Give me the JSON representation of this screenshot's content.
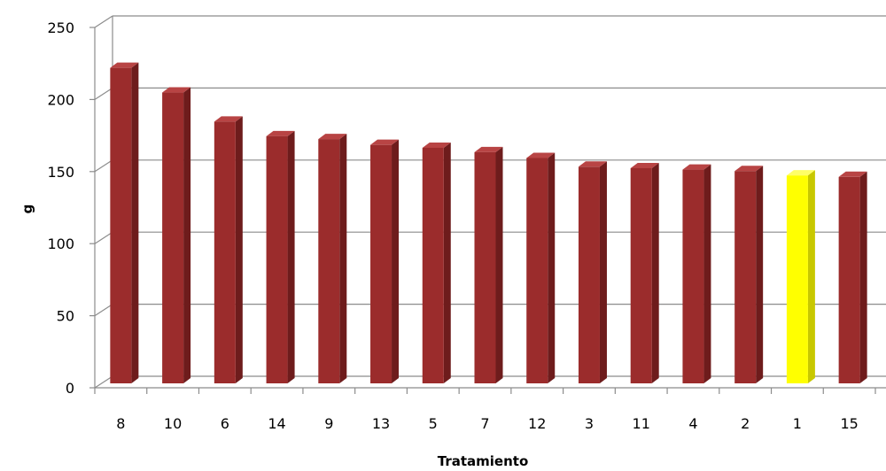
{
  "chart_data": {
    "type": "bar",
    "style": "3d-column",
    "xlabel": "Tratamiento",
    "ylabel": "g",
    "ylim": [
      0,
      250
    ],
    "yticks": [
      0,
      50,
      100,
      150,
      200,
      250
    ],
    "grid": true,
    "legend": "none",
    "categories": [
      "8",
      "10",
      "6",
      "14",
      "9",
      "13",
      "5",
      "7",
      "12",
      "3",
      "11",
      "4",
      "2",
      "1",
      "15"
    ],
    "values": [
      217,
      200,
      180,
      170,
      168,
      164,
      162,
      159,
      155,
      149,
      148,
      147,
      146,
      143,
      142
    ],
    "highlight_category": "1",
    "colors": {
      "bar": "#9B2C2C",
      "bar_side": "#6E1C1C",
      "bar_top": "#B84444",
      "highlight": "#FFFF00",
      "highlight_side": "#C8C800",
      "highlight_top": "#FFFF66",
      "grid": "#8C8C8C",
      "axis": "#8C8C8C",
      "background": "#FFFFFF"
    }
  }
}
